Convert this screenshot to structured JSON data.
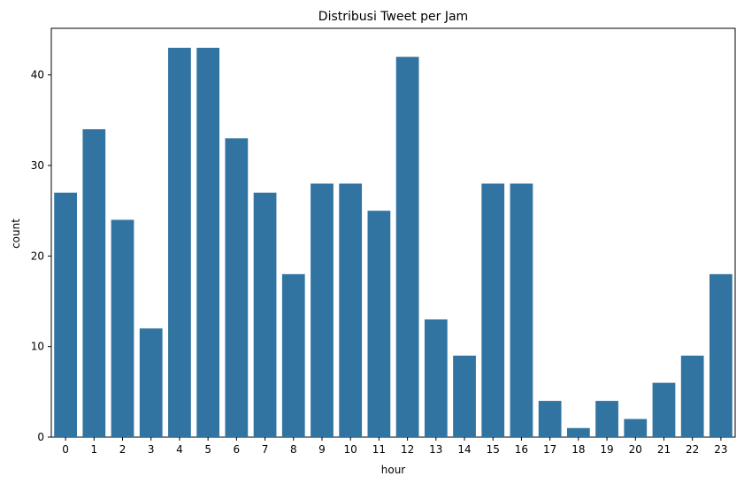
{
  "chart_data": {
    "type": "bar",
    "title": "Distribusi Tweet per Jam",
    "xlabel": "hour",
    "ylabel": "count",
    "categories": [
      "0",
      "1",
      "2",
      "3",
      "4",
      "5",
      "6",
      "7",
      "8",
      "9",
      "10",
      "11",
      "12",
      "13",
      "14",
      "15",
      "16",
      "17",
      "18",
      "19",
      "20",
      "21",
      "22",
      "23"
    ],
    "values": [
      27,
      34,
      24,
      12,
      43,
      43,
      33,
      27,
      18,
      28,
      28,
      25,
      42,
      13,
      9,
      28,
      28,
      4,
      1,
      4,
      2,
      6,
      9,
      18
    ],
    "ylim": [
      0,
      45.15
    ],
    "yticks": [
      0,
      10,
      20,
      30,
      40
    ],
    "grid": false,
    "legend": "none",
    "colors": {
      "bar": "#3274a1",
      "axis": "#000000",
      "background": "#ffffff"
    }
  }
}
